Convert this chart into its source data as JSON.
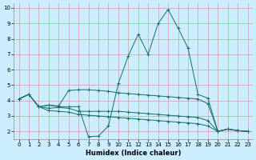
{
  "xlabel": "Humidex (Indice chaleur)",
  "bg_color": "#cceeff",
  "grid_color": "#c8a0a0",
  "line_color": "#1a6b6b",
  "xlim": [
    -0.5,
    23.5
  ],
  "ylim": [
    1.5,
    10.3
  ],
  "xticks": [
    0,
    1,
    2,
    3,
    4,
    5,
    6,
    7,
    8,
    9,
    10,
    11,
    12,
    13,
    14,
    15,
    16,
    17,
    18,
    19,
    20,
    21,
    22,
    23
  ],
  "yticks": [
    2,
    3,
    4,
    5,
    6,
    7,
    8,
    9,
    10
  ],
  "line1_x": [
    0,
    1,
    2,
    3,
    4,
    5,
    6,
    7,
    8,
    9,
    10,
    11,
    12,
    13,
    14,
    15,
    16,
    17,
    18,
    19,
    20,
    21,
    22,
    23
  ],
  "line1_y": [
    4.1,
    4.4,
    3.6,
    3.7,
    3.6,
    3.6,
    3.6,
    1.65,
    1.7,
    2.35,
    5.1,
    6.9,
    8.3,
    7.0,
    9.0,
    9.9,
    8.7,
    7.4,
    4.4,
    4.15,
    2.0,
    2.15,
    2.05,
    2.0
  ],
  "line2_x": [
    0,
    1,
    2,
    3,
    4,
    5,
    6,
    7,
    8,
    9,
    10,
    11,
    12,
    13,
    14,
    15,
    16,
    17,
    18,
    19,
    20,
    21,
    22,
    23
  ],
  "line2_y": [
    4.1,
    4.4,
    3.6,
    3.7,
    3.65,
    4.65,
    4.7,
    4.7,
    4.65,
    4.6,
    4.5,
    4.45,
    4.4,
    4.35,
    4.3,
    4.25,
    4.2,
    4.15,
    4.1,
    3.8,
    2.0,
    2.15,
    2.05,
    2.0
  ],
  "line3_x": [
    0,
    1,
    2,
    3,
    4,
    5,
    6,
    7,
    8,
    9,
    10,
    11,
    12,
    13,
    14,
    15,
    16,
    17,
    18,
    19,
    20,
    21,
    22,
    23
  ],
  "line3_y": [
    4.1,
    4.4,
    3.6,
    3.5,
    3.55,
    3.5,
    3.3,
    3.3,
    3.3,
    3.3,
    3.3,
    3.25,
    3.2,
    3.15,
    3.1,
    3.05,
    3.0,
    2.95,
    2.9,
    2.7,
    2.0,
    2.15,
    2.05,
    2.0
  ],
  "line4_x": [
    0,
    1,
    2,
    3,
    4,
    5,
    6,
    7,
    8,
    9,
    10,
    11,
    12,
    13,
    14,
    15,
    16,
    17,
    18,
    19,
    20,
    21,
    22,
    23
  ],
  "line4_y": [
    4.1,
    4.4,
    3.6,
    3.35,
    3.3,
    3.25,
    3.1,
    3.05,
    3.0,
    2.95,
    2.9,
    2.85,
    2.8,
    2.75,
    2.7,
    2.65,
    2.6,
    2.55,
    2.5,
    2.35,
    2.0,
    2.15,
    2.05,
    2.0
  ]
}
